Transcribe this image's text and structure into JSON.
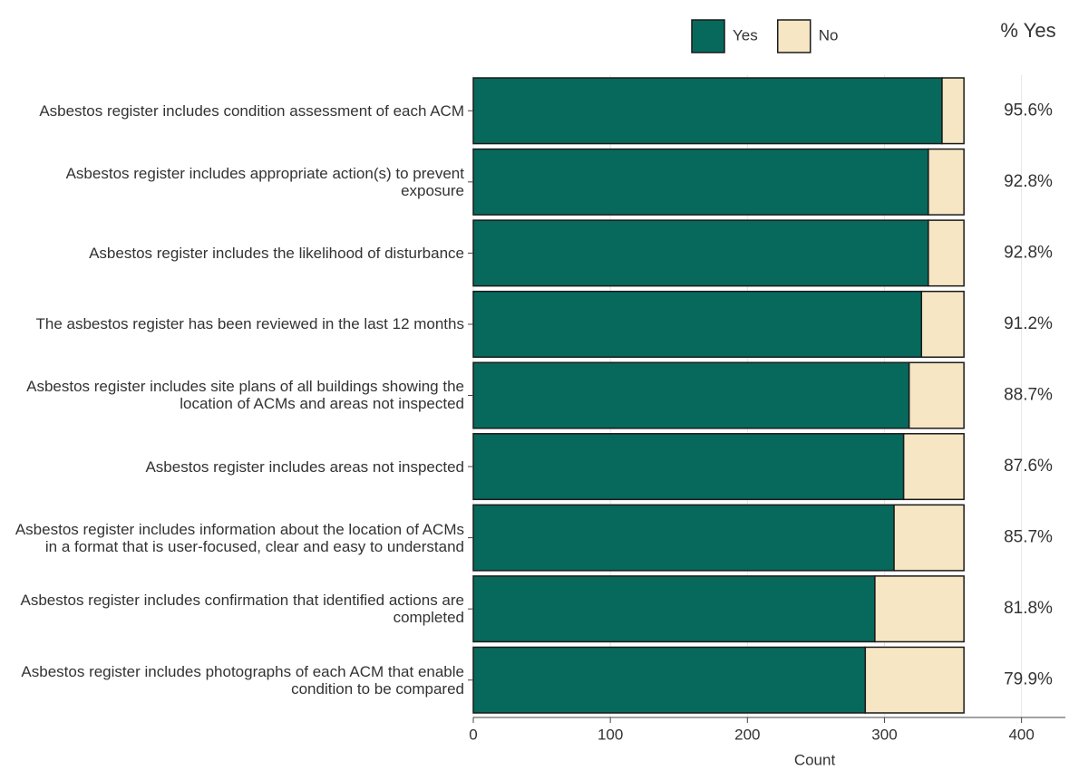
{
  "chart_data": {
    "type": "stacked_bar_horizontal",
    "categories": [
      "Asbestos register includes condition assessment of each ACM",
      "Asbestos register includes appropriate action(s) to prevent exposure",
      "Asbestos register includes the likelihood of disturbance",
      "The asbestos register has been reviewed in the last 12 months",
      "Asbestos register includes site plans of all buildings showing the location of ACMs and areas not inspected",
      "Asbestos register includes areas not inspected",
      "Asbestos register includes information about the location of ACMs in a format that is user-focused, clear and easy to understand",
      "Asbestos register includes confirmation that identified actions are completed",
      "Asbestos register includes photographs of each ACM that enable condition to be compared"
    ],
    "series": [
      {
        "name": "Yes",
        "color": "#07695c",
        "values": [
          342,
          332,
          332,
          327,
          318,
          314,
          307,
          293,
          286
        ]
      },
      {
        "name": "No",
        "color": "#f6e6c3",
        "values": [
          16,
          26,
          26,
          31,
          40,
          44,
          51,
          65,
          72
        ]
      }
    ],
    "percent_yes": {
      "header": "% Yes",
      "values": [
        95.6,
        92.8,
        92.8,
        91.2,
        88.7,
        87.6,
        85.7,
        81.8,
        79.9
      ],
      "value_labels": [
        "95.6%",
        "92.8%",
        "92.8%",
        "91.2%",
        "88.7%",
        "87.6%",
        "85.7%",
        "81.8%",
        "79.9%"
      ]
    },
    "x_label": "Count",
    "xlim": [
      0,
      432
    ],
    "xticks": [
      0,
      100,
      200,
      300,
      400
    ],
    "grid": true,
    "legend": "top"
  }
}
